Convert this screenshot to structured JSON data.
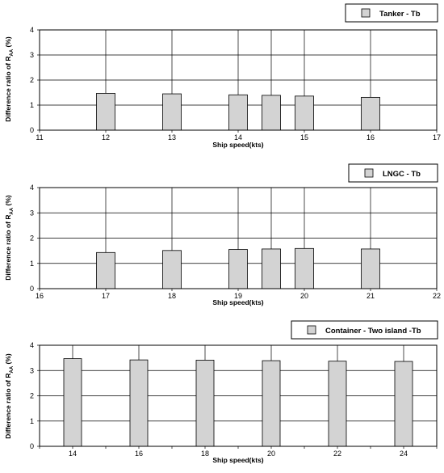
{
  "chart_data": [
    {
      "type": "bar",
      "legend": "Tanker - Tb",
      "xlabel": "Ship speed(kts)",
      "ylabel_main": "Difference ratio of R",
      "ylabel_sub": "AA",
      "ylabel_tail": " (%)",
      "xlim": [
        11,
        17
      ],
      "ylim": [
        0,
        4
      ],
      "x_ticks": [
        "11",
        "12",
        "13",
        "14",
        "15",
        "16",
        "17"
      ],
      "y_ticks": [
        "0",
        "1",
        "2",
        "3",
        "4"
      ],
      "x": [
        12,
        13,
        14,
        14.5,
        15,
        16
      ],
      "values": [
        1.47,
        1.45,
        1.41,
        1.39,
        1.36,
        1.31
      ],
      "legend_placement": "top-right",
      "grid": true,
      "colors": {
        "bar_fill": "#d3d3d3",
        "stroke": "#000000"
      }
    },
    {
      "type": "bar",
      "legend": "LNGC - Tb",
      "xlabel": "Ship speed(kts)",
      "ylabel_main": "Difference ratio of R",
      "ylabel_sub": "AA",
      "ylabel_tail": " (%)",
      "xlim": [
        16,
        22
      ],
      "ylim": [
        0,
        4
      ],
      "x_ticks": [
        "16",
        "17",
        "18",
        "19",
        "20",
        "21",
        "22"
      ],
      "y_ticks": [
        "0",
        "1",
        "2",
        "3",
        "4"
      ],
      "x": [
        17,
        18,
        19,
        19.5,
        20,
        21
      ],
      "values": [
        1.43,
        1.51,
        1.55,
        1.57,
        1.59,
        1.57
      ],
      "legend_placement": "top-right",
      "grid": true,
      "colors": {
        "bar_fill": "#d3d3d3",
        "stroke": "#000000"
      }
    },
    {
      "type": "bar",
      "legend": "Container - Two island -Tb",
      "xlabel": "Ship speed(kts)",
      "ylabel_main": "Difference ratio of R",
      "ylabel_sub": "AA",
      "ylabel_tail": " (%)",
      "ylim": [
        0,
        4
      ],
      "y_ticks": [
        "0",
        "1",
        "2",
        "3",
        "4"
      ],
      "categories": [
        "14",
        "16",
        "18",
        "20",
        "22",
        "24"
      ],
      "values": [
        3.47,
        3.42,
        3.41,
        3.39,
        3.37,
        3.36
      ],
      "legend_placement": "top-right",
      "grid": true,
      "colors": {
        "bar_fill": "#d3d3d3",
        "stroke": "#000000"
      }
    }
  ]
}
